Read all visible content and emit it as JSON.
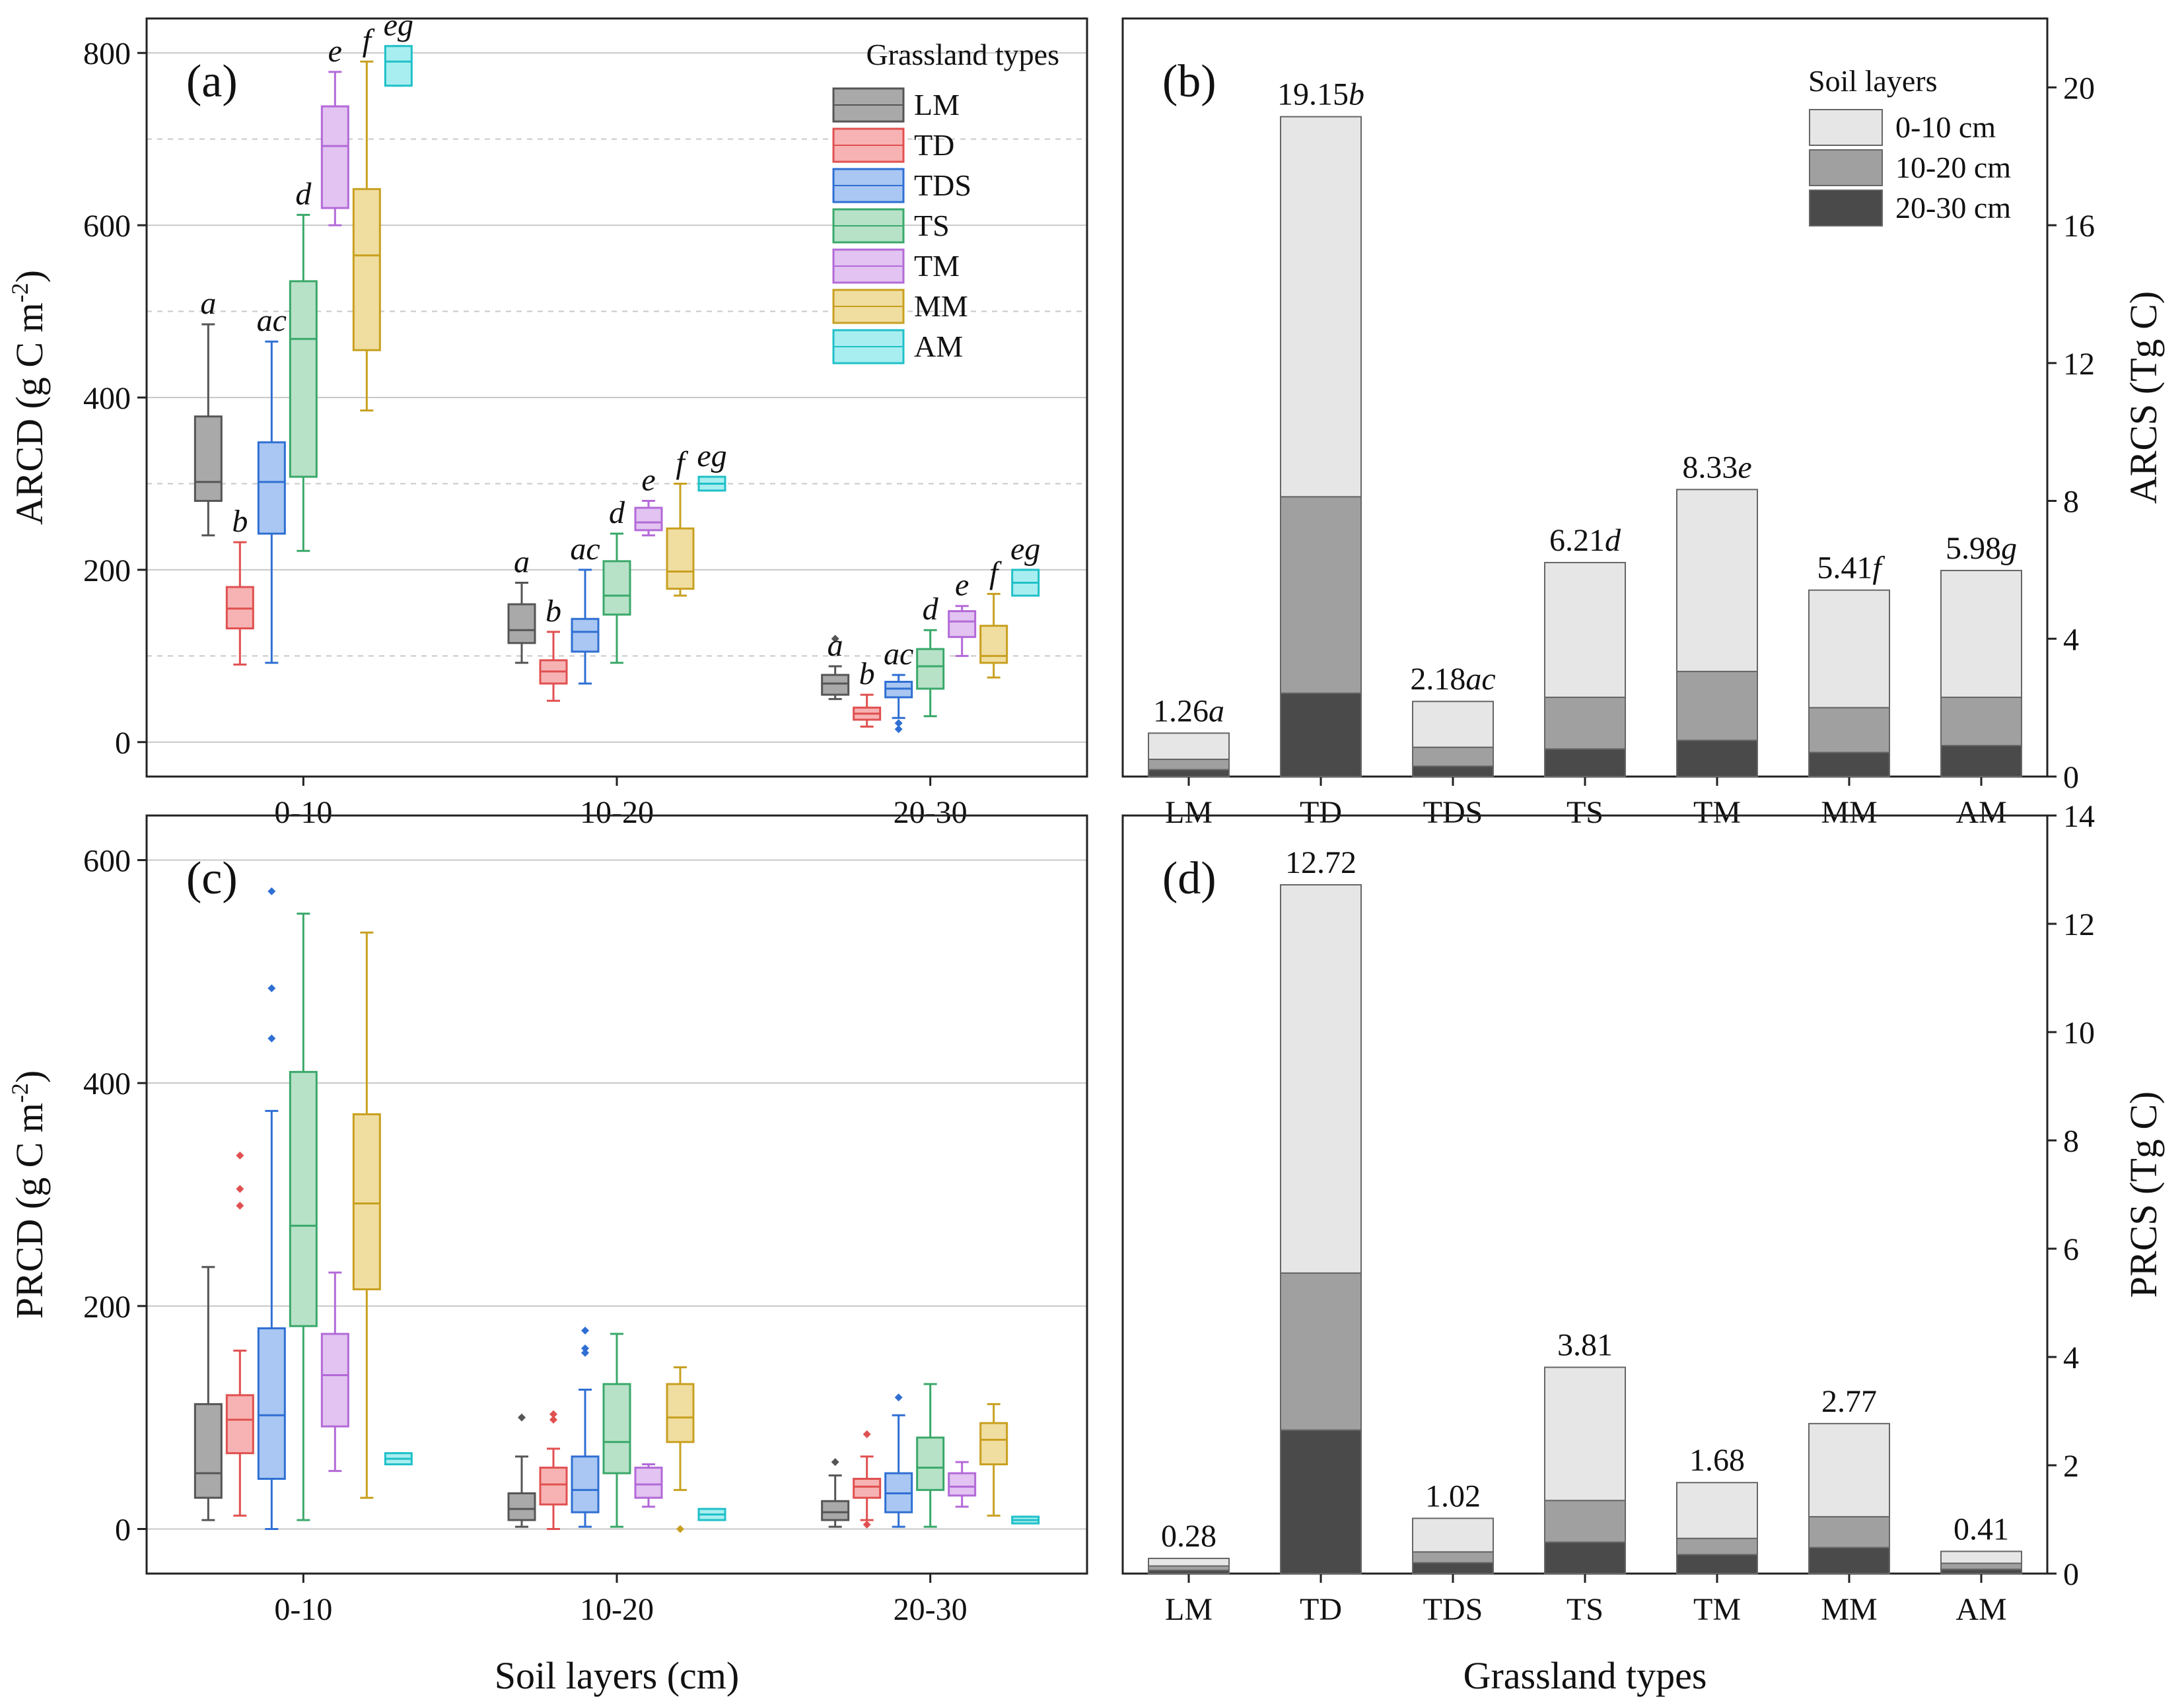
{
  "colors": {
    "LM": {
      "stroke": "#555555",
      "fill": "#a9a9a9"
    },
    "TD": {
      "stroke": "#e05050",
      "fill": "#f7b3b3"
    },
    "TDS": {
      "stroke": "#2f6fd3",
      "fill": "#a9c7f2"
    },
    "TS": {
      "stroke": "#3aa86a",
      "fill": "#b7e2c8"
    },
    "TM": {
      "stroke": "#b36ad8",
      "fill": "#e2c3f1"
    },
    "MM": {
      "stroke": "#c8a020",
      "fill": "#f0dda0"
    },
    "AM": {
      "stroke": "#20c0c8",
      "fill": "#a8eef0"
    },
    "layer_0_10": "#e6e6e6",
    "layer_10_20": "#a0a0a0",
    "layer_20_30": "#4a4a4a"
  },
  "chart_data": [
    {
      "id": "a",
      "panel_label": "(a)",
      "type": "box",
      "ylabel_main": "ARCD (g C m",
      "ylabel_sup": "-2",
      "ylabel_end": ")",
      "xlabel": "",
      "ylim": [
        -40,
        840
      ],
      "yticks": [
        "0",
        "200",
        "400",
        "600",
        "800"
      ],
      "ytick_values": [
        0,
        200,
        400,
        600,
        800
      ],
      "grid_major": [
        0,
        200,
        400,
        600,
        800
      ],
      "grid_minor": [
        100,
        300,
        500,
        700
      ],
      "categories": [
        "0-10",
        "10-20",
        "20-30"
      ],
      "series_names": [
        "LM",
        "TD",
        "TDS",
        "TS",
        "TM",
        "MM",
        "AM"
      ],
      "legend_title": "Grassland types",
      "legend_labels": [
        "LM",
        "TD",
        "TDS",
        "TS",
        "TM",
        "MM",
        "AM"
      ],
      "boxes": [
        [
          {
            "min": 240,
            "q1": 280,
            "med": 302,
            "q3": 378,
            "max": 485,
            "letter": "a",
            "outliers": []
          },
          {
            "min": 90,
            "q1": 132,
            "med": 155,
            "q3": 180,
            "max": 232,
            "letter": "b",
            "outliers": []
          },
          {
            "min": 92,
            "q1": 242,
            "med": 302,
            "q3": 348,
            "max": 465,
            "letter": "ac",
            "outliers": []
          },
          {
            "min": 222,
            "q1": 308,
            "med": 468,
            "q3": 535,
            "max": 612,
            "letter": "d",
            "outliers": []
          },
          {
            "min": 600,
            "q1": 620,
            "med": 692,
            "q3": 738,
            "max": 778,
            "letter": "e",
            "outliers": []
          },
          {
            "min": 385,
            "q1": 455,
            "med": 565,
            "q3": 642,
            "max": 790,
            "letter": "f",
            "outliers": []
          },
          {
            "min": 762,
            "q1": 762,
            "med": 790,
            "q3": 808,
            "max": 808,
            "letter": "eg",
            "outliers": []
          }
        ],
        [
          {
            "min": 92,
            "q1": 115,
            "med": 130,
            "q3": 160,
            "max": 185,
            "letter": "a",
            "outliers": []
          },
          {
            "min": 48,
            "q1": 68,
            "med": 82,
            "q3": 95,
            "max": 128,
            "letter": "b",
            "outliers": []
          },
          {
            "min": 68,
            "q1": 105,
            "med": 128,
            "q3": 143,
            "max": 200,
            "letter": "ac",
            "outliers": []
          },
          {
            "min": 92,
            "q1": 148,
            "med": 170,
            "q3": 210,
            "max": 242,
            "letter": "d",
            "outliers": []
          },
          {
            "min": 240,
            "q1": 246,
            "med": 255,
            "q3": 272,
            "max": 280,
            "letter": "e",
            "outliers": []
          },
          {
            "min": 170,
            "q1": 178,
            "med": 198,
            "q3": 248,
            "max": 300,
            "letter": "f",
            "outliers": []
          },
          {
            "min": 292,
            "q1": 292,
            "med": 300,
            "q3": 308,
            "max": 308,
            "letter": "eg",
            "outliers": []
          }
        ],
        [
          {
            "min": 50,
            "q1": 55,
            "med": 68,
            "q3": 78,
            "max": 88,
            "letter": "a",
            "outliers": [
              120
            ]
          },
          {
            "min": 18,
            "q1": 26,
            "med": 33,
            "q3": 40,
            "max": 55,
            "letter": "b",
            "outliers": []
          },
          {
            "min": 28,
            "q1": 52,
            "med": 62,
            "q3": 70,
            "max": 78,
            "letter": "ac",
            "outliers": [
              15,
              22
            ]
          },
          {
            "min": 30,
            "q1": 62,
            "med": 88,
            "q3": 108,
            "max": 130,
            "letter": "d",
            "outliers": []
          },
          {
            "min": 100,
            "q1": 122,
            "med": 140,
            "q3": 152,
            "max": 158,
            "letter": "e",
            "outliers": []
          },
          {
            "min": 75,
            "q1": 92,
            "med": 100,
            "q3": 135,
            "max": 172,
            "letter": "f",
            "outliers": []
          },
          {
            "min": 170,
            "q1": 170,
            "med": 185,
            "q3": 200,
            "max": 200,
            "letter": "eg",
            "outliers": []
          }
        ]
      ]
    },
    {
      "id": "b",
      "panel_label": "(b)",
      "type": "stacked_bar",
      "ylabel_right": "ARCS (Tg C)",
      "ylim": [
        0,
        22
      ],
      "yticks": [
        "0",
        "4",
        "8",
        "12",
        "16",
        "20"
      ],
      "ytick_values": [
        0,
        4,
        8,
        12,
        16,
        20
      ],
      "categories": [
        "LM",
        "TD",
        "TDS",
        "TS",
        "TM",
        "MM",
        "AM"
      ],
      "legend_title": "Soil layers",
      "legend_labels": [
        "0-10 cm",
        "10-20 cm",
        "20-30 cm"
      ],
      "series": [
        {
          "name": "20-30 cm",
          "values": [
            0.2,
            2.42,
            0.3,
            0.8,
            1.05,
            0.7,
            0.9
          ]
        },
        {
          "name": "10-20 cm",
          "values": [
            0.3,
            5.7,
            0.55,
            1.5,
            2.0,
            1.3,
            1.4
          ]
        },
        {
          "name": "0-10 cm",
          "values": [
            0.76,
            11.03,
            1.33,
            3.91,
            5.28,
            3.41,
            3.68
          ]
        }
      ],
      "totals": [
        1.26,
        19.15,
        2.18,
        6.21,
        8.33,
        5.41,
        5.98
      ],
      "total_labels": [
        "1.26",
        "19.15",
        "2.18",
        "6.21",
        "8.33",
        "5.41",
        "5.98"
      ],
      "letters": [
        "a",
        "b",
        "ac",
        "d",
        "e",
        "f",
        "g"
      ]
    },
    {
      "id": "c",
      "panel_label": "(c)",
      "type": "box",
      "ylabel_main": "PRCD (g C m",
      "ylabel_sup": "-2",
      "ylabel_end": ")",
      "xlabel": "Soil layers (cm)",
      "ylim": [
        -40,
        640
      ],
      "yticks": [
        "0",
        "200",
        "400",
        "600"
      ],
      "ytick_values": [
        0,
        200,
        400,
        600
      ],
      "grid_major": [
        0,
        200,
        400,
        600
      ],
      "grid_minor": [],
      "categories": [
        "0-10",
        "10-20",
        "20-30"
      ],
      "series_names": [
        "LM",
        "TD",
        "TDS",
        "TS",
        "TM",
        "MM",
        "AM"
      ],
      "boxes": [
        [
          {
            "min": 8,
            "q1": 28,
            "med": 50,
            "q3": 112,
            "max": 235,
            "letter": "",
            "outliers": []
          },
          {
            "min": 12,
            "q1": 68,
            "med": 98,
            "q3": 120,
            "max": 160,
            "letter": "",
            "outliers": [
              290,
              305,
              335
            ]
          },
          {
            "min": 0,
            "q1": 45,
            "med": 102,
            "q3": 180,
            "max": 375,
            "letter": "",
            "outliers": [
              440,
              485,
              572
            ]
          },
          {
            "min": 8,
            "q1": 182,
            "med": 272,
            "q3": 410,
            "max": 552,
            "letter": "",
            "outliers": []
          },
          {
            "min": 52,
            "q1": 92,
            "med": 138,
            "q3": 175,
            "max": 230,
            "letter": "",
            "outliers": []
          },
          {
            "min": 28,
            "q1": 215,
            "med": 292,
            "q3": 372,
            "max": 535,
            "letter": "",
            "outliers": []
          },
          {
            "min": 58,
            "q1": 58,
            "med": 63,
            "q3": 68,
            "max": 68,
            "letter": "",
            "outliers": []
          }
        ],
        [
          {
            "min": 2,
            "q1": 8,
            "med": 18,
            "q3": 32,
            "max": 65,
            "letter": "",
            "outliers": [
              100
            ]
          },
          {
            "min": 0,
            "q1": 22,
            "med": 40,
            "q3": 55,
            "max": 72,
            "letter": "",
            "outliers": [
              98,
              103
            ]
          },
          {
            "min": 2,
            "q1": 15,
            "med": 35,
            "q3": 65,
            "max": 125,
            "letter": "",
            "outliers": [
              158,
              162,
              178
            ]
          },
          {
            "min": 2,
            "q1": 50,
            "med": 78,
            "q3": 130,
            "max": 175,
            "letter": "",
            "outliers": []
          },
          {
            "min": 20,
            "q1": 28,
            "med": 40,
            "q3": 55,
            "max": 58,
            "letter": "",
            "outliers": []
          },
          {
            "min": 35,
            "q1": 78,
            "med": 100,
            "q3": 130,
            "max": 145,
            "letter": "",
            "outliers": [
              0
            ]
          },
          {
            "min": 8,
            "q1": 8,
            "med": 13,
            "q3": 18,
            "max": 18,
            "letter": "",
            "outliers": []
          }
        ],
        [
          {
            "min": 2,
            "q1": 8,
            "med": 15,
            "q3": 25,
            "max": 48,
            "letter": "",
            "outliers": [
              60
            ]
          },
          {
            "min": 8,
            "q1": 28,
            "med": 38,
            "q3": 45,
            "max": 65,
            "letter": "",
            "outliers": [
              4,
              85
            ]
          },
          {
            "min": 2,
            "q1": 15,
            "med": 32,
            "q3": 50,
            "max": 102,
            "letter": "",
            "outliers": [
              118
            ]
          },
          {
            "min": 2,
            "q1": 35,
            "med": 55,
            "q3": 82,
            "max": 130,
            "letter": "",
            "outliers": []
          },
          {
            "min": 20,
            "q1": 30,
            "med": 38,
            "q3": 50,
            "max": 60,
            "letter": "",
            "outliers": []
          },
          {
            "min": 12,
            "q1": 58,
            "med": 80,
            "q3": 95,
            "max": 112,
            "letter": "",
            "outliers": []
          },
          {
            "min": 5,
            "q1": 5,
            "med": 8,
            "q3": 11,
            "max": 11,
            "letter": "",
            "outliers": []
          }
        ]
      ]
    },
    {
      "id": "d",
      "panel_label": "(d)",
      "type": "stacked_bar",
      "ylabel_right": "PRCS (Tg C)",
      "xlabel": "Grassland types",
      "ylim": [
        0,
        14
      ],
      "yticks": [
        "0",
        "2",
        "4",
        "6",
        "8",
        "10",
        "12",
        "14"
      ],
      "ytick_values": [
        0,
        2,
        4,
        6,
        8,
        10,
        12,
        14
      ],
      "categories": [
        "LM",
        "TD",
        "TDS",
        "TS",
        "TM",
        "MM",
        "AM"
      ],
      "series": [
        {
          "name": "20-30 cm",
          "values": [
            0.06,
            2.65,
            0.2,
            0.58,
            0.35,
            0.48,
            0.08
          ]
        },
        {
          "name": "10-20 cm",
          "values": [
            0.08,
            2.9,
            0.2,
            0.77,
            0.3,
            0.57,
            0.11
          ]
        },
        {
          "name": "0-10 cm",
          "values": [
            0.14,
            7.17,
            0.62,
            2.46,
            1.03,
            1.72,
            0.22
          ]
        }
      ],
      "totals": [
        0.28,
        12.72,
        1.02,
        3.81,
        1.68,
        2.77,
        0.41
      ],
      "total_labels": [
        "0.28",
        "12.72",
        "1.02",
        "3.81",
        "1.68",
        "2.77",
        "0.41"
      ],
      "letters": [
        "",
        "",
        "",
        "",
        "",
        "",
        ""
      ]
    }
  ]
}
